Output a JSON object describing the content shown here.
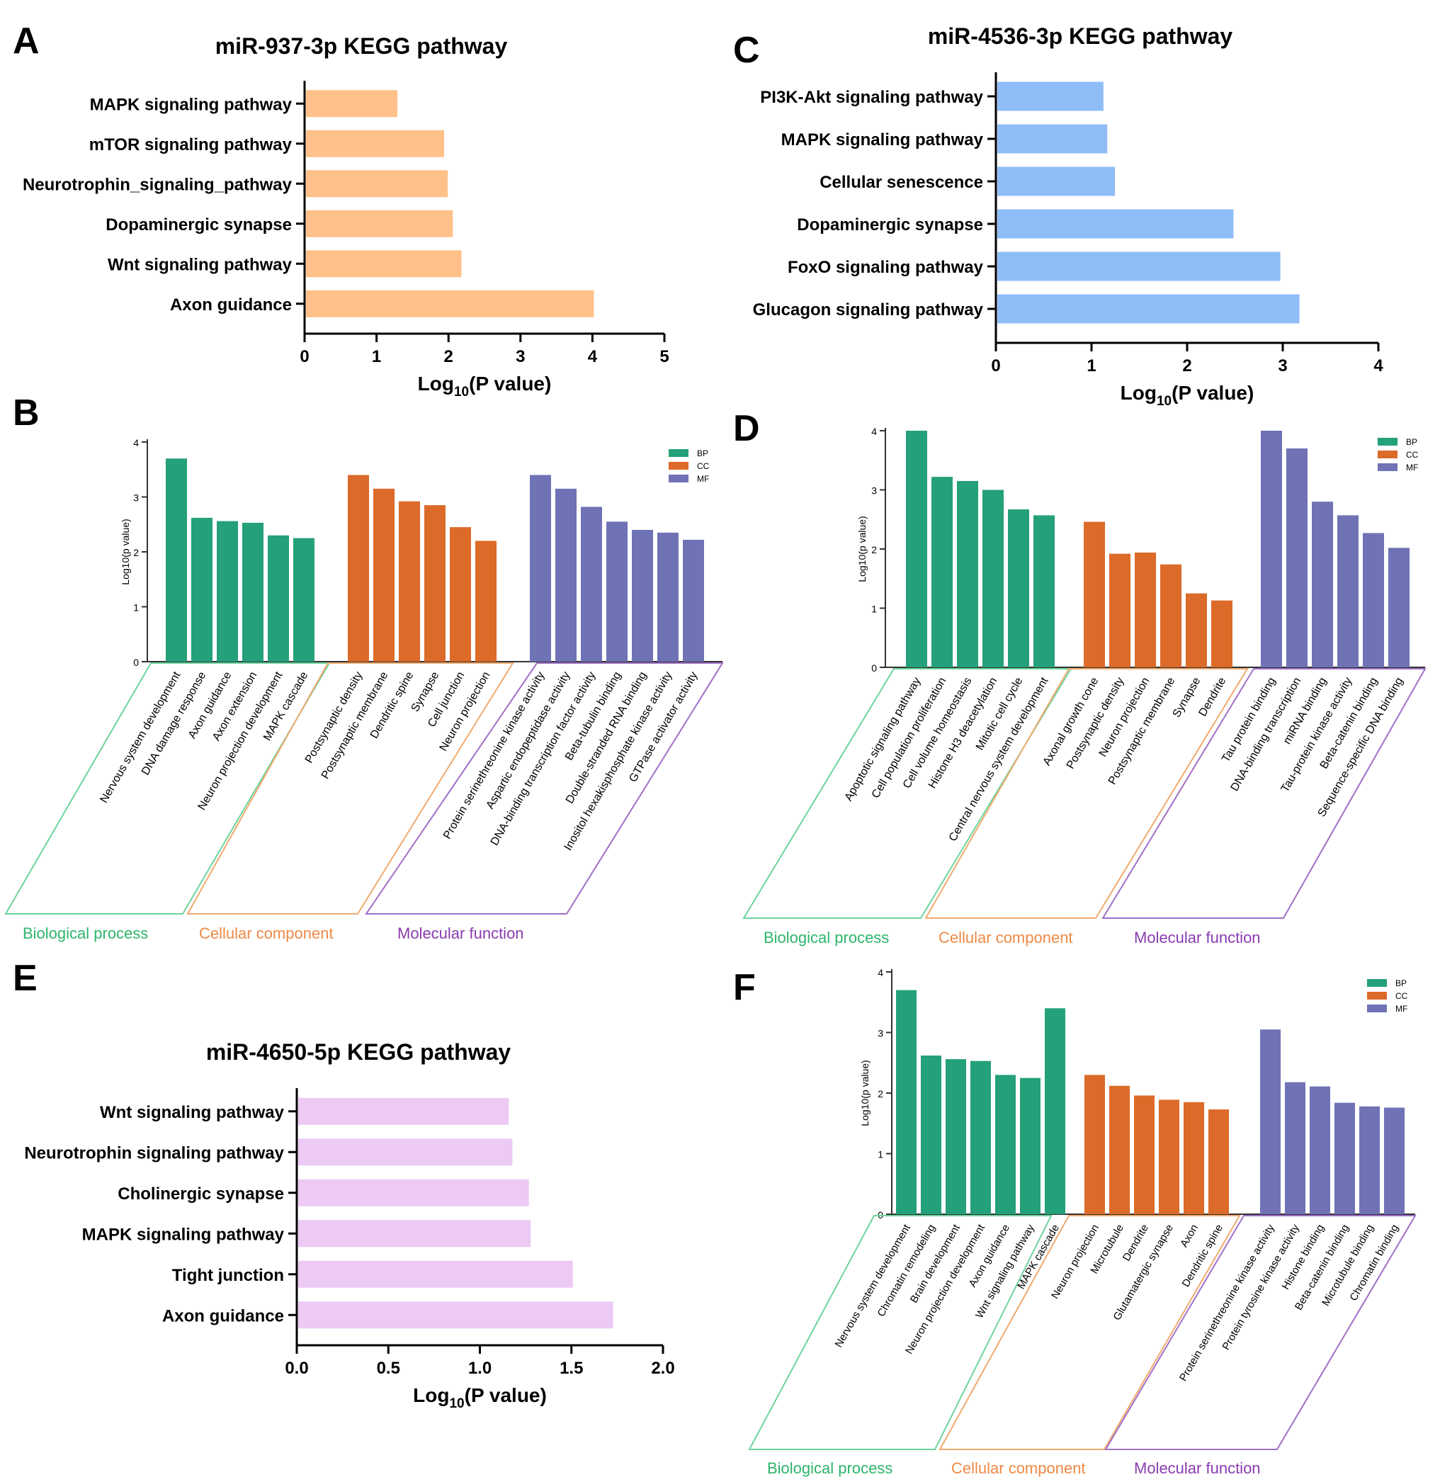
{
  "colors": {
    "kegg_A": "#ffc08a",
    "kegg_C": "#8fbdf8",
    "kegg_E": "#eccaf4",
    "BP": "#24a07a",
    "CC": "#dc6a29",
    "MF": "#6f72b5",
    "box_BP": "#6ed49e",
    "box_CC": "#f0aa70",
    "box_MF": "#a070c8",
    "text_BP": "#2db56a",
    "text_CC": "#ee8a46",
    "text_MF": "#8a3cb0"
  },
  "chart_data": [
    {
      "panel": "A",
      "type": "bar",
      "orientation": "horizontal",
      "title": "miR-937-3p KEGG pathway",
      "xlabel": "Log10(P value)",
      "categories": [
        "MAPK signaling pathway",
        "mTOR signaling pathway",
        "Neurotrophin_signaling_pathway",
        "Dopaminergic synapse",
        "Wnt signaling pathway",
        "Axon guidance"
      ],
      "values": [
        1.27,
        1.92,
        1.97,
        2.04,
        2.16,
        4.0
      ],
      "xlim": [
        0,
        5
      ],
      "ticks": [
        "0",
        "1",
        "2",
        "3",
        "4",
        "5"
      ]
    },
    {
      "panel": "C",
      "type": "bar",
      "orientation": "horizontal",
      "title": "miR-4536-3p KEGG pathway",
      "xlabel": "Log10(P value)",
      "categories": [
        "PI3K-Akt signaling pathway",
        "MAPK signaling pathway",
        "Cellular senescence",
        "Dopaminergic synapse",
        "FoxO signaling pathway",
        "Glucagon signaling pathway"
      ],
      "values": [
        1.11,
        1.15,
        1.23,
        2.47,
        2.96,
        3.16
      ],
      "xlim": [
        0,
        4
      ],
      "ticks": [
        "0",
        "1",
        "2",
        "3",
        "4"
      ]
    },
    {
      "panel": "E",
      "type": "bar",
      "orientation": "horizontal",
      "title": "miR-4650-5p KEGG pathway",
      "xlabel": "Log10(P value)",
      "categories": [
        "Wnt signaling pathway",
        "Neurotrophin signaling pathway",
        "Cholinergic synapse",
        "MAPK signaling pathway",
        "Tight junction",
        "Axon guidance"
      ],
      "values": [
        1.15,
        1.17,
        1.26,
        1.27,
        1.5,
        1.72
      ],
      "xlim": [
        0,
        2
      ],
      "ticks": [
        "0.0",
        "0.5",
        "1.0",
        "1.5",
        "2.0"
      ]
    },
    {
      "panel": "B",
      "type": "bar",
      "ylabel": "Log10(p value)",
      "ylim": [
        0,
        4
      ],
      "yticks": [
        "0",
        "1",
        "2",
        "3",
        "4"
      ],
      "legend": [
        "BP",
        "CC",
        "MF"
      ],
      "group_labels": [
        "Biological process",
        "Cellular component",
        "Molecular function"
      ],
      "groups": [
        {
          "key": "BP",
          "categories": [
            "Nervous system development",
            "DNA damage response",
            "Axon guidance",
            "Axon extension",
            "Neuron projection development",
            "MAPK cascade"
          ],
          "values": [
            3.7,
            2.62,
            2.56,
            2.53,
            2.3,
            2.25
          ]
        },
        {
          "key": "CC",
          "categories": [
            "Postsynaptic density",
            "Postsynaptic membrane",
            "Dendritic spine",
            "Synapse",
            "Cell junction",
            "Neuron projection"
          ],
          "values": [
            3.4,
            3.15,
            2.92,
            2.85,
            2.45,
            2.2
          ]
        },
        {
          "key": "MF",
          "categories": [
            "Protein serinethreonine kinase activity",
            "Aspartic endopeptidase activity",
            "DNA-binding transcription factor activity",
            "Beta-tubulin binding",
            "Double-stranded RNA binding",
            "Inositol hexakisphosphate kinase activity",
            "GTPase activator activity"
          ],
          "values": [
            3.4,
            3.15,
            2.82,
            2.55,
            2.4,
            2.35,
            2.22
          ]
        }
      ]
    },
    {
      "panel": "D",
      "type": "bar",
      "ylabel": "Log10(p value)",
      "ylim": [
        0,
        4
      ],
      "yticks": [
        "0",
        "1",
        "2",
        "3",
        "4"
      ],
      "legend": [
        "BP",
        "CC",
        "MF"
      ],
      "group_labels": [
        "Biological process",
        "Cellular component",
        "Molecular function"
      ],
      "groups": [
        {
          "key": "BP",
          "categories": [
            "Apoptotic signaling pathway",
            "Cell population proliferation",
            "Cell volume homeostasis",
            "Histone H3 deacetylation",
            "Mitotic cell cycle",
            "Central nervous system development"
          ],
          "values": [
            4.0,
            3.22,
            3.15,
            3.0,
            2.67,
            2.57
          ]
        },
        {
          "key": "CC",
          "categories": [
            "Axonal growth cone",
            "Postsynaptic density",
            "Neuron projection",
            "Postsynaptic membrane",
            "Synapse",
            "Dendrite"
          ],
          "values": [
            2.46,
            1.92,
            1.94,
            1.74,
            1.25,
            1.13
          ]
        },
        {
          "key": "MF",
          "categories": [
            "Tau protein binding",
            "DNA-binding transcription",
            "miRNA binding",
            "Tau-protein kinase activity",
            "Beta-catenin binding",
            "Sequence-specific DNA binding"
          ],
          "values": [
            4.0,
            3.7,
            2.8,
            2.57,
            2.27,
            2.02
          ]
        }
      ]
    },
    {
      "panel": "F",
      "type": "bar",
      "ylabel": "Log10(p value)",
      "ylim": [
        0,
        4
      ],
      "yticks": [
        "0",
        "1",
        "2",
        "3",
        "4"
      ],
      "legend": [
        "BP",
        "CC",
        "MF"
      ],
      "group_labels": [
        "Biological process",
        "Cellular component",
        "Molecular function"
      ],
      "groups": [
        {
          "key": "BP",
          "categories": [
            "Nervous system development",
            "Chromatin remodeling",
            "Brain development",
            "Neuron projection development",
            "Axon guidance",
            "Wnt signaling pathway",
            "MAPK cascade"
          ],
          "values": [
            3.7,
            2.62,
            2.56,
            2.53,
            2.3,
            2.25,
            3.4
          ]
        },
        {
          "key": "CC",
          "categories": [
            "Neuron projection",
            "Microtubule",
            "Dendrite",
            "Glutamatergic synapse",
            "Axon",
            "Dendritic spine"
          ],
          "values": [
            2.3,
            2.12,
            1.96,
            1.89,
            1.85,
            1.73
          ]
        },
        {
          "key": "MF",
          "categories": [
            "Protein serinethreonine kinase activity",
            "Protein tyrosine kinase activity",
            "Histone binding",
            "Beta-catenin binding",
            "Microtubule binding",
            "Chromatin binding"
          ],
          "values": [
            3.05,
            2.18,
            2.11,
            1.84,
            1.78,
            1.76
          ]
        }
      ]
    }
  ]
}
